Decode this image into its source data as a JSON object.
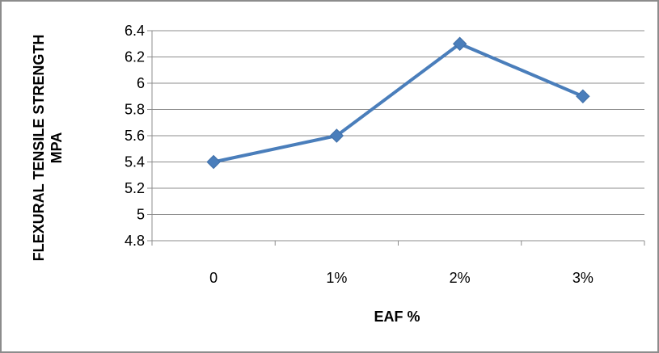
{
  "chart_data": {
    "type": "line",
    "title": "",
    "xlabel": "EAF %",
    "ylabel": [
      "FLEXURAL TENSILE STRENGTH",
      "MPA"
    ],
    "categories": [
      "0",
      "1%",
      "2%",
      "3%"
    ],
    "series": [
      {
        "values": [
          5.4,
          5.6,
          6.3,
          5.9
        ]
      }
    ],
    "ylim": [
      4.8,
      6.4
    ],
    "yticks": [
      "4.8",
      "5",
      "5.2",
      "5.4",
      "5.6",
      "5.8",
      "6",
      "6.2",
      "6.4"
    ],
    "grid": true,
    "legend": "none",
    "marker": "diamond",
    "series_color": "#4a7ebb",
    "grid_color": "#8c8c8c"
  }
}
